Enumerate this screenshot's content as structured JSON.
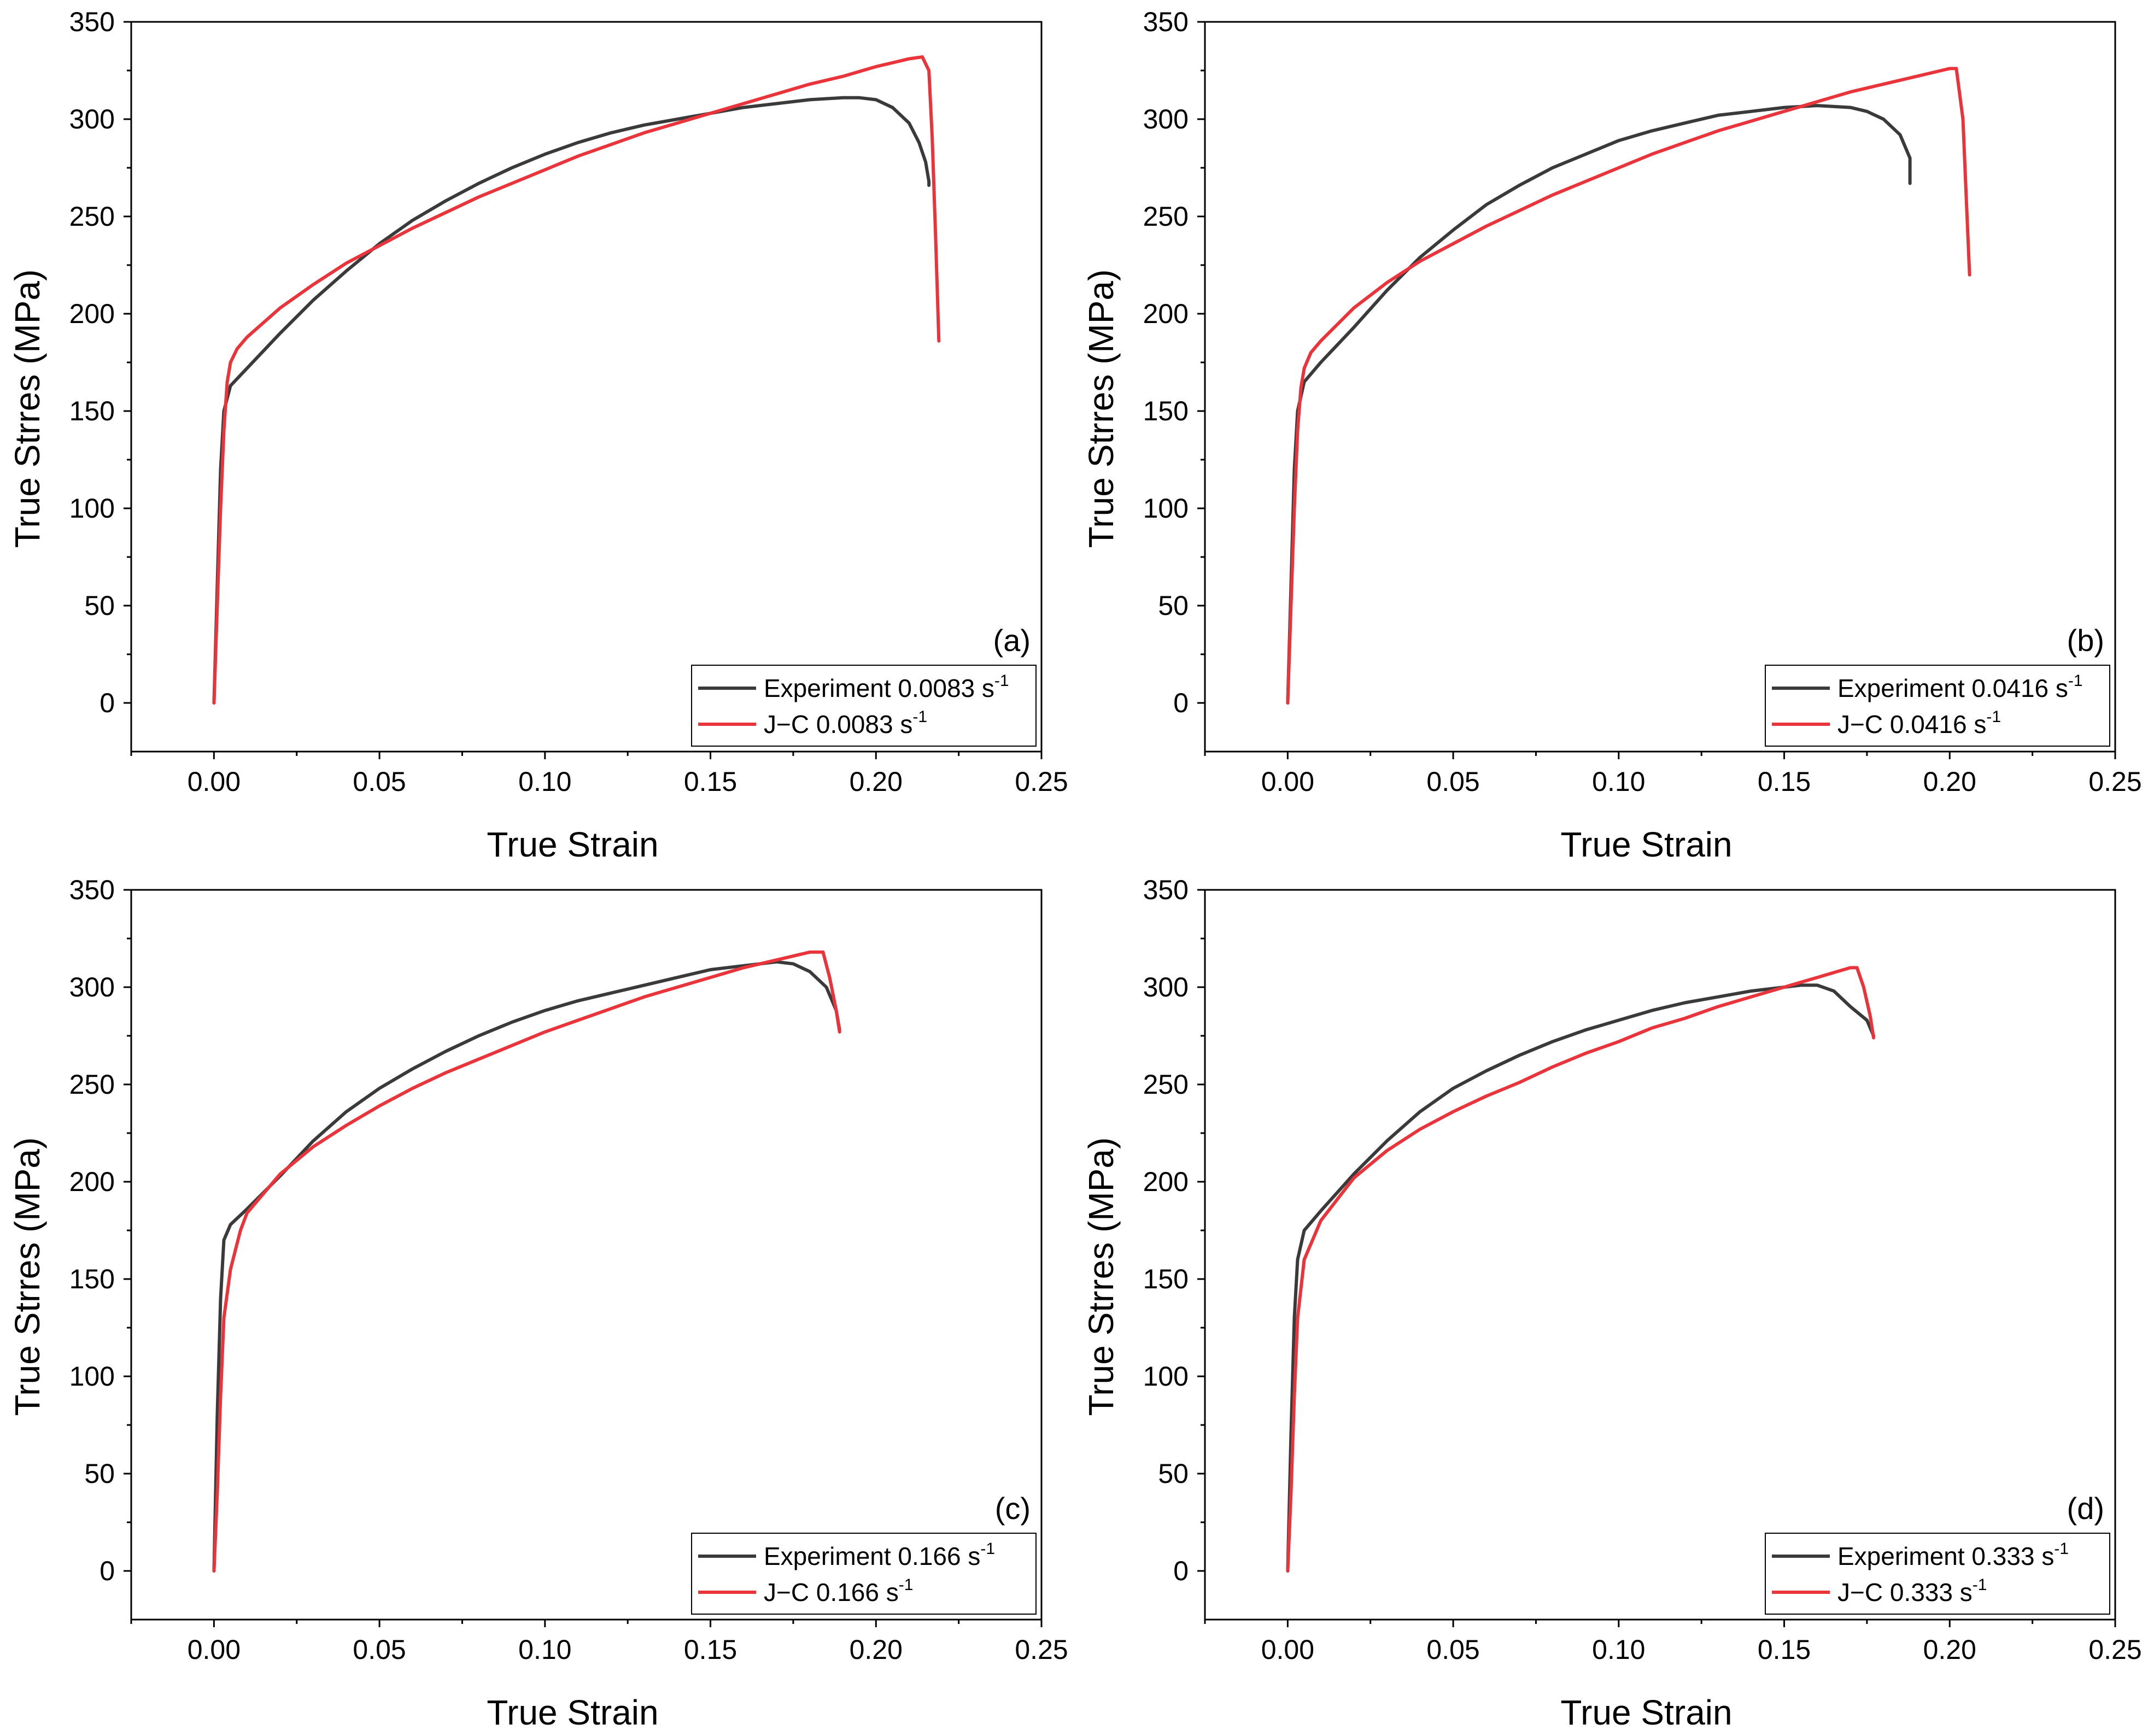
{
  "chart_data": [
    {
      "type": "line",
      "panel_label": "(a)",
      "xlabel": "True Strain",
      "ylabel": "True Strres (MPa)",
      "xlim": [
        -0.025,
        0.25
      ],
      "ylim": [
        -25,
        350
      ],
      "xticks": [
        "0.00",
        "0.05",
        "0.10",
        "0.15",
        "0.20",
        "0.25"
      ],
      "yticks": [
        "0",
        "50",
        "100",
        "150",
        "200",
        "250",
        "300",
        "350"
      ],
      "legend_position": "bottom-right",
      "series": [
        {
          "name": "Experiment 0.0083 s",
          "name_superscript": "-1",
          "color": "#3a3a3a",
          "x": [
            0,
            0.001,
            0.002,
            0.003,
            0.005,
            0.01,
            0.02,
            0.03,
            0.04,
            0.05,
            0.06,
            0.07,
            0.08,
            0.09,
            0.1,
            0.11,
            0.12,
            0.13,
            0.14,
            0.15,
            0.16,
            0.17,
            0.18,
            0.19,
            0.195,
            0.2,
            0.205,
            0.21,
            0.213,
            0.215,
            0.216,
            0.216
          ],
          "y": [
            0,
            60,
            120,
            150,
            163,
            172,
            190,
            207,
            222,
            236,
            248,
            258,
            267,
            275,
            282,
            288,
            293,
            297,
            300,
            303,
            306,
            308,
            310,
            311,
            311,
            310,
            306,
            298,
            288,
            278,
            268,
            266
          ]
        },
        {
          "name": "J−C 0.0083 s",
          "name_superscript": "-1",
          "color": "#e8343a",
          "x": [
            0,
            0.001,
            0.002,
            0.003,
            0.004,
            0.005,
            0.007,
            0.01,
            0.02,
            0.03,
            0.04,
            0.05,
            0.06,
            0.07,
            0.08,
            0.09,
            0.1,
            0.11,
            0.12,
            0.13,
            0.14,
            0.15,
            0.16,
            0.17,
            0.18,
            0.19,
            0.2,
            0.21,
            0.214,
            0.216,
            0.217,
            0.218,
            0.219
          ],
          "y": [
            0,
            50,
            100,
            140,
            165,
            175,
            182,
            188,
            203,
            215,
            226,
            235,
            244,
            252,
            260,
            267,
            274,
            281,
            287,
            293,
            298,
            303,
            308,
            313,
            318,
            322,
            327,
            331,
            332,
            325,
            290,
            240,
            186
          ]
        }
      ]
    },
    {
      "type": "line",
      "panel_label": "(b)",
      "xlabel": "True Strain",
      "ylabel": "True Strres (MPa)",
      "xlim": [
        -0.025,
        0.25
      ],
      "ylim": [
        -25,
        350
      ],
      "xticks": [
        "0.00",
        "0.05",
        "0.10",
        "0.15",
        "0.20",
        "0.25"
      ],
      "yticks": [
        "0",
        "50",
        "100",
        "150",
        "200",
        "250",
        "300",
        "350"
      ],
      "legend_position": "bottom-right",
      "series": [
        {
          "name": "Experiment  0.0416 s",
          "name_superscript": "-1",
          "color": "#3a3a3a",
          "x": [
            0,
            0.001,
            0.002,
            0.003,
            0.005,
            0.01,
            0.02,
            0.03,
            0.04,
            0.05,
            0.06,
            0.07,
            0.08,
            0.09,
            0.1,
            0.11,
            0.12,
            0.13,
            0.14,
            0.15,
            0.16,
            0.17,
            0.175,
            0.18,
            0.185,
            0.188,
            0.188
          ],
          "y": [
            0,
            60,
            120,
            150,
            165,
            175,
            193,
            212,
            229,
            243,
            256,
            266,
            275,
            282,
            289,
            294,
            298,
            302,
            304,
            306,
            307,
            306,
            304,
            300,
            292,
            280,
            267
          ]
        },
        {
          "name": "J−C 0.0416 s",
          "name_superscript": "-1",
          "color": "#e8343a",
          "x": [
            0,
            0.001,
            0.002,
            0.003,
            0.004,
            0.005,
            0.007,
            0.01,
            0.02,
            0.03,
            0.04,
            0.05,
            0.06,
            0.07,
            0.08,
            0.09,
            0.1,
            0.11,
            0.12,
            0.13,
            0.14,
            0.15,
            0.16,
            0.17,
            0.18,
            0.19,
            0.2,
            0.202,
            0.204,
            0.205,
            0.206
          ],
          "y": [
            0,
            50,
            100,
            140,
            162,
            172,
            180,
            186,
            203,
            216,
            227,
            236,
            245,
            253,
            261,
            268,
            275,
            282,
            288,
            294,
            299,
            304,
            309,
            314,
            318,
            322,
            326,
            326,
            300,
            260,
            220
          ]
        }
      ]
    },
    {
      "type": "line",
      "panel_label": "(c)",
      "xlabel": "True Strain",
      "ylabel": "True Strres (MPa)",
      "xlim": [
        -0.025,
        0.25
      ],
      "ylim": [
        -25,
        350
      ],
      "xticks": [
        "0.00",
        "0.05",
        "0.10",
        "0.15",
        "0.20",
        "0.25"
      ],
      "yticks": [
        "0",
        "50",
        "100",
        "150",
        "200",
        "250",
        "300",
        "350"
      ],
      "legend_position": "bottom-right",
      "series": [
        {
          "name": "Experiment  0.166 s",
          "name_superscript": "-1",
          "color": "#3a3a3a",
          "x": [
            0,
            0.001,
            0.002,
            0.003,
            0.005,
            0.01,
            0.02,
            0.03,
            0.04,
            0.05,
            0.06,
            0.07,
            0.08,
            0.09,
            0.1,
            0.11,
            0.12,
            0.13,
            0.14,
            0.15,
            0.16,
            0.17,
            0.175,
            0.18,
            0.185,
            0.188,
            0.189
          ],
          "y": [
            0,
            80,
            140,
            170,
            178,
            186,
            203,
            221,
            236,
            248,
            258,
            267,
            275,
            282,
            288,
            293,
            297,
            301,
            305,
            309,
            311,
            313,
            312,
            308,
            300,
            288,
            278
          ]
        },
        {
          "name": "J−C 0.166 s",
          "name_superscript": "-1",
          "color": "#e8343a",
          "x": [
            0,
            0.001,
            0.002,
            0.003,
            0.005,
            0.008,
            0.01,
            0.02,
            0.03,
            0.04,
            0.05,
            0.06,
            0.07,
            0.08,
            0.09,
            0.1,
            0.11,
            0.12,
            0.13,
            0.14,
            0.15,
            0.16,
            0.17,
            0.18,
            0.184,
            0.186,
            0.188,
            0.189
          ],
          "y": [
            0,
            40,
            90,
            130,
            155,
            175,
            184,
            204,
            218,
            229,
            239,
            248,
            256,
            263,
            270,
            277,
            283,
            289,
            295,
            300,
            305,
            310,
            314,
            318,
            318,
            305,
            288,
            277
          ]
        }
      ]
    },
    {
      "type": "line",
      "panel_label": "(d)",
      "xlabel": "True Strain",
      "ylabel": "True Strres (MPa)",
      "xlim": [
        -0.025,
        0.25
      ],
      "ylim": [
        -25,
        350
      ],
      "xticks": [
        "0.00",
        "0.05",
        "0.10",
        "0.15",
        "0.20",
        "0.25"
      ],
      "yticks": [
        "0",
        "50",
        "100",
        "150",
        "200",
        "250",
        "300",
        "350"
      ],
      "legend_position": "bottom-right",
      "series": [
        {
          "name": "Experiment  0.333 s",
          "name_superscript": "-1",
          "color": "#3a3a3a",
          "x": [
            0,
            0.001,
            0.002,
            0.003,
            0.005,
            0.01,
            0.02,
            0.03,
            0.04,
            0.05,
            0.06,
            0.07,
            0.08,
            0.09,
            0.1,
            0.11,
            0.12,
            0.13,
            0.14,
            0.15,
            0.155,
            0.16,
            0.165,
            0.17,
            0.175,
            0.177
          ],
          "y": [
            0,
            70,
            130,
            160,
            175,
            185,
            204,
            221,
            236,
            248,
            257,
            265,
            272,
            278,
            283,
            288,
            292,
            295,
            298,
            300,
            301,
            301,
            298,
            290,
            283,
            275
          ]
        },
        {
          "name": "J−C 0.333 s",
          "name_superscript": "-1",
          "color": "#e8343a",
          "x": [
            0,
            0.001,
            0.002,
            0.003,
            0.005,
            0.008,
            0.01,
            0.02,
            0.03,
            0.04,
            0.05,
            0.06,
            0.07,
            0.08,
            0.09,
            0.1,
            0.11,
            0.12,
            0.13,
            0.14,
            0.15,
            0.16,
            0.17,
            0.172,
            0.174,
            0.176,
            0.177
          ],
          "y": [
            0,
            40,
            90,
            130,
            160,
            172,
            180,
            202,
            216,
            227,
            236,
            244,
            251,
            259,
            266,
            272,
            279,
            284,
            290,
            295,
            300,
            305,
            310,
            310,
            300,
            285,
            274
          ]
        }
      ]
    }
  ]
}
